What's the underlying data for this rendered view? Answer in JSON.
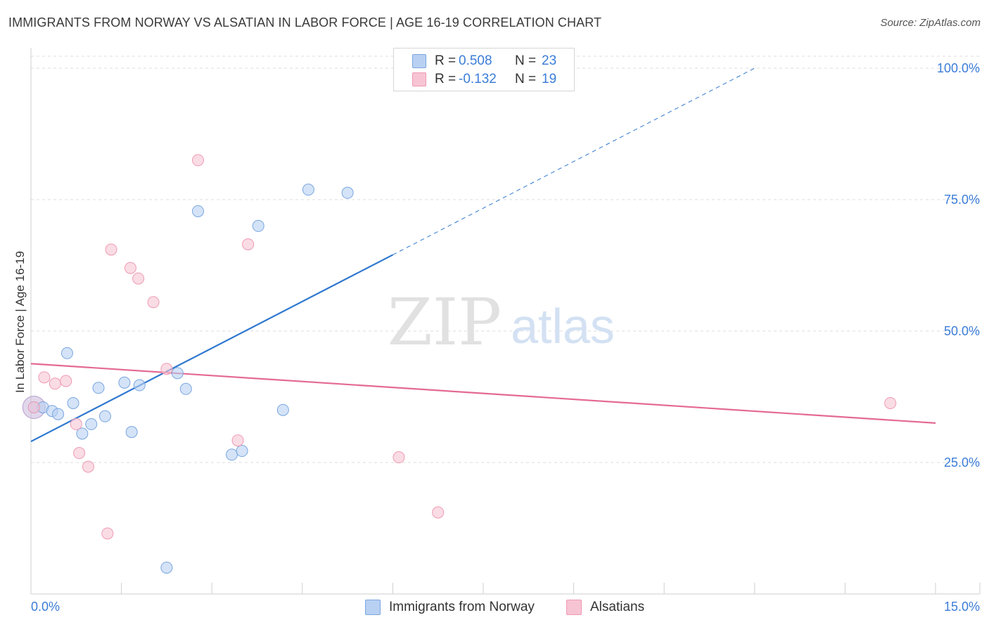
{
  "title": "IMMIGRANTS FROM NORWAY VS ALSATIAN IN LABOR FORCE | AGE 16-19 CORRELATION CHART",
  "source": "Source: ZipAtlas.com",
  "legend": {
    "series1": {
      "r_label": "R =",
      "r_value": "0.508",
      "n_label": "N =",
      "n_value": "23"
    },
    "series2": {
      "r_label": "R =",
      "r_value": "-0.132",
      "n_label": "N =",
      "n_value": "19"
    }
  },
  "colors": {
    "blue_fill": "#b8d0f2",
    "blue_stroke": "#7aa6e0",
    "blue_line": "#2f78d0",
    "pink_fill": "#f7c4d3",
    "pink_stroke": "#ee9ab3",
    "pink_line": "#e46a94",
    "axis_label": "#3b7dd8",
    "grid": "#dcdcdc"
  },
  "watermark": {
    "zip": "ZIP",
    "atlas": "atlas"
  },
  "chart_data": {
    "type": "scatter",
    "title": "IMMIGRANTS FROM NORWAY VS ALSATIAN IN LABOR FORCE | AGE 16-19 CORRELATION CHART",
    "xlabel": "",
    "ylabel": "In Labor Force | Age 16-19",
    "xlim": [
      0,
      15
    ],
    "ylim": [
      0,
      100
    ],
    "x_tick_labels": [
      "0.0%",
      "15.0%"
    ],
    "y_ticks": [
      25,
      50,
      75,
      100
    ],
    "y_tick_labels": [
      "25.0%",
      "50.0%",
      "75.0%",
      "100.0%"
    ],
    "grid": true,
    "legend_position": "top-center",
    "series": [
      {
        "name": "Immigrants from Norway",
        "color": "blue",
        "points": [
          [
            0.05,
            35.5
          ],
          [
            0.2,
            35.5
          ],
          [
            0.35,
            34.8
          ],
          [
            0.45,
            34.2
          ],
          [
            0.6,
            45.8
          ],
          [
            0.7,
            36.3
          ],
          [
            0.85,
            30.5
          ],
          [
            1.0,
            32.3
          ],
          [
            1.12,
            39.2
          ],
          [
            1.23,
            33.8
          ],
          [
            1.55,
            40.2
          ],
          [
            1.67,
            30.8
          ],
          [
            1.8,
            39.7
          ],
          [
            2.25,
            5.0
          ],
          [
            2.43,
            42.0
          ],
          [
            2.57,
            39.0
          ],
          [
            2.77,
            72.8
          ],
          [
            3.33,
            26.5
          ],
          [
            3.5,
            27.2
          ],
          [
            3.77,
            70.0
          ],
          [
            4.18,
            35.0
          ],
          [
            4.6,
            76.9
          ],
          [
            5.25,
            76.3
          ]
        ],
        "trend": {
          "x": [
            0.0,
            6.0
          ],
          "y": [
            29.0,
            64.5
          ],
          "dashed_to": [
            12.0,
            100.0
          ]
        }
      },
      {
        "name": "Alsatians",
        "color": "pink",
        "points": [
          [
            0.05,
            35.5
          ],
          [
            0.22,
            41.2
          ],
          [
            0.4,
            40.0
          ],
          [
            0.58,
            40.5
          ],
          [
            0.75,
            32.3
          ],
          [
            0.8,
            26.8
          ],
          [
            0.95,
            24.2
          ],
          [
            1.27,
            11.5
          ],
          [
            1.33,
            65.5
          ],
          [
            1.65,
            62.0
          ],
          [
            1.78,
            60.0
          ],
          [
            2.03,
            55.5
          ],
          [
            2.25,
            42.8
          ],
          [
            2.77,
            82.5
          ],
          [
            3.43,
            29.2
          ],
          [
            3.6,
            66.5
          ],
          [
            6.1,
            26.0
          ],
          [
            6.75,
            15.5
          ],
          [
            14.25,
            36.3
          ]
        ],
        "trend": {
          "x": [
            0.0,
            15.0
          ],
          "y": [
            43.8,
            32.5
          ]
        }
      }
    ]
  }
}
